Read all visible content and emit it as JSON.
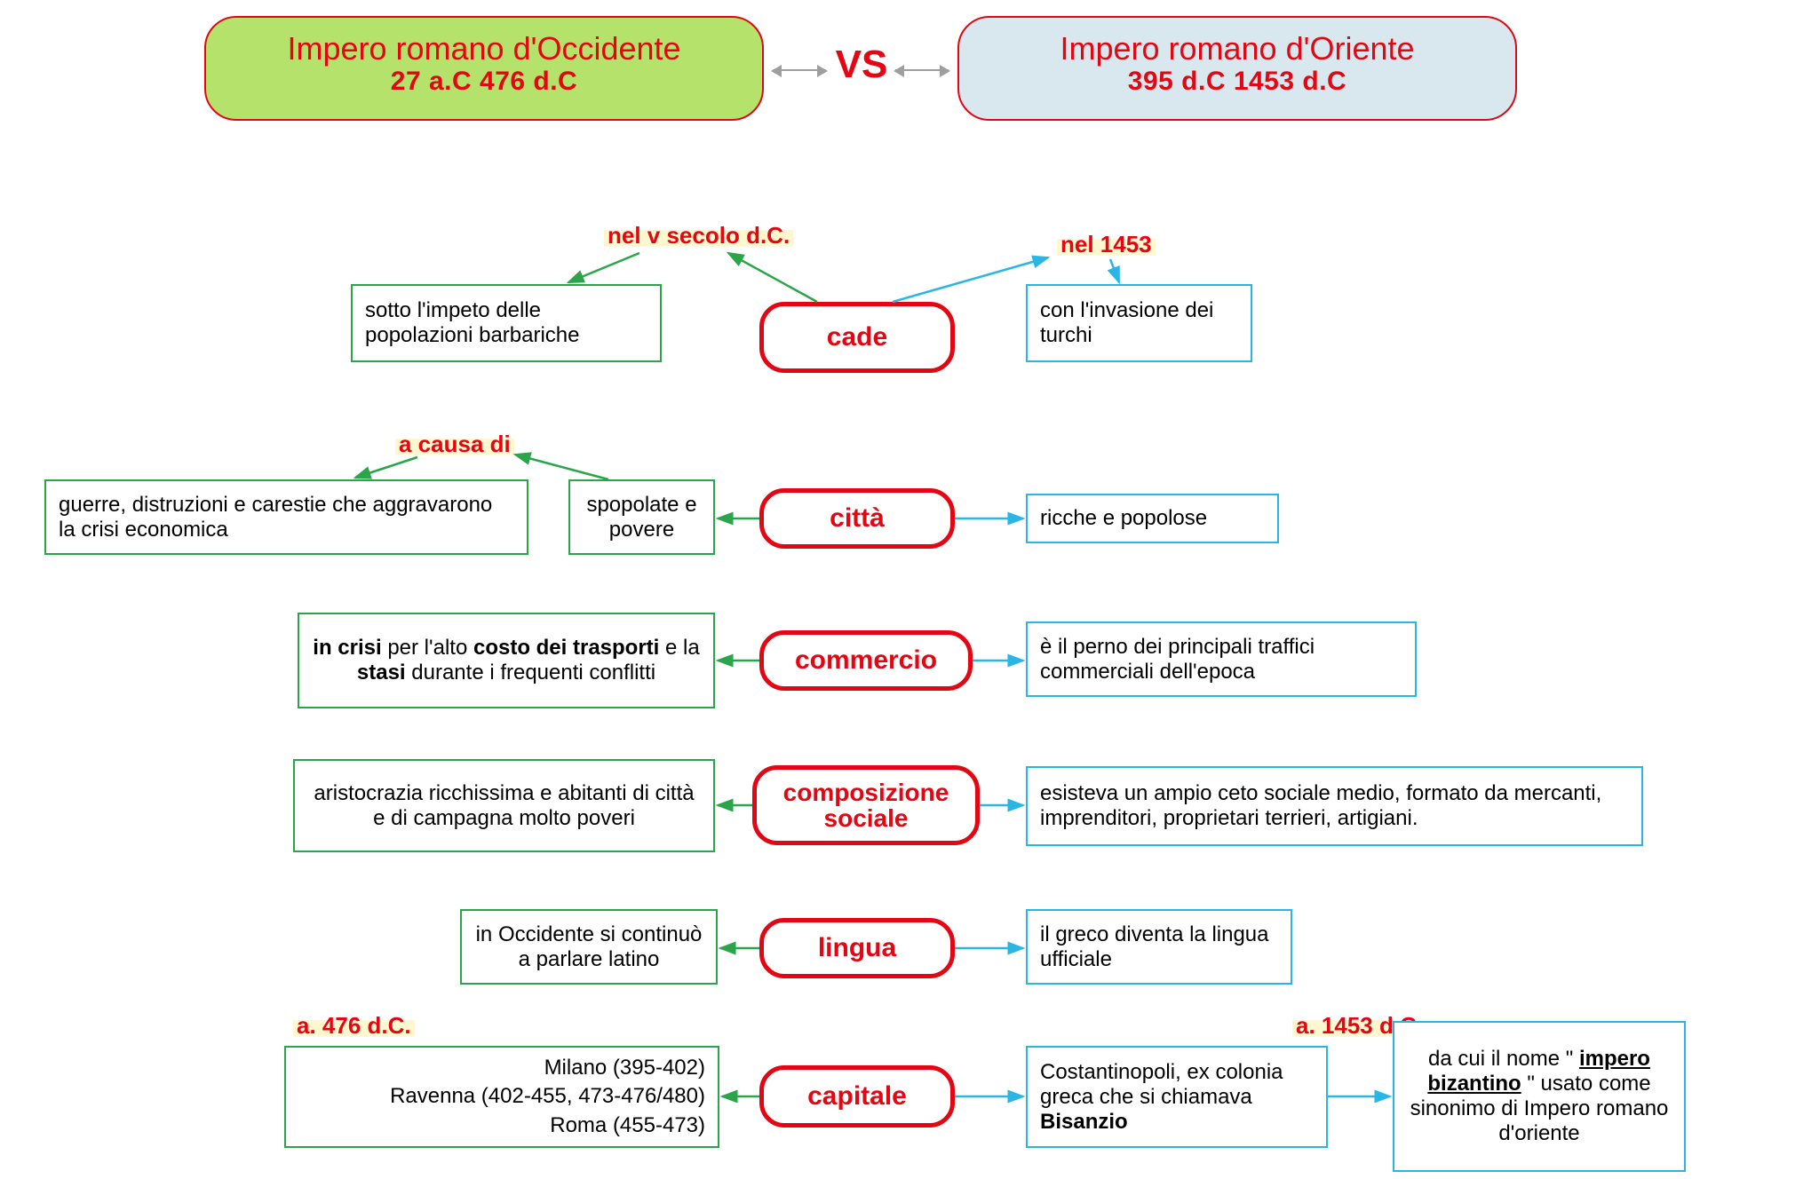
{
  "colors": {
    "red": "#e30613",
    "green_border": "#2aa54a",
    "cyan_border": "#29b6e5",
    "green_arrow": "#2aa54a",
    "cyan_arrow": "#29b6e5",
    "hdr_left_bg": "#b5e26a",
    "hdr_right_bg": "#d9e8ee",
    "gray_arrow": "#9e9e9e",
    "highlight_bg": "#fff8cf"
  },
  "header": {
    "left": {
      "title": "Impero romano d'Occidente",
      "dates": "27 a.C 476 d.C"
    },
    "vs": "VS",
    "right": {
      "title": "Impero romano d'Oriente",
      "dates": "395 d.C 1453 d.C"
    }
  },
  "labels": {
    "nel_v_secolo": "nel v secolo d.C.",
    "nel_1453": "nel 1453",
    "a_causa_di": "a causa di",
    "a476": "a. 476 d.C.",
    "a1453": "a. 1453 d.C."
  },
  "topics": {
    "cade": "cade",
    "citta": "città",
    "commercio": "commercio",
    "composizione": "composizione sociale",
    "lingua": "lingua",
    "capitale": "capitale"
  },
  "west": {
    "cade": "sotto l'impeto delle popolazioni barbariche",
    "citta": "spopolate e povere",
    "citta_cause": "guerre, distruzioni e carestie che aggravarono la crisi economica",
    "commercio_html": "<b>in crisi</b> per l'alto <b>costo dei trasporti</b> e la <b>stasi</b> durante i frequenti conflitti",
    "composizione": "aristocrazia ricchissima e abitanti di città e di campagna molto poveri",
    "lingua": "in Occidente si continuò a parlare latino",
    "capitale": "Milano (395-402)\nRavenna (402-455, 473-476/480)\nRoma (455-473)"
  },
  "east": {
    "cade": "con l'invasione dei turchi",
    "citta": "ricche e popolose",
    "commercio": "è il perno dei principali traffici commerciali dell'epoca",
    "composizione": "esisteva un ampio ceto sociale medio, formato da mercanti, imprenditori, proprietari terrieri, artigiani.",
    "lingua": "il greco diventa la lingua ufficiale",
    "capitale_html": "Costantinopoli, ex colonia greca che si chiamava <b>Bisanzio</b>",
    "capitale_note_html": "da cui il nome \" <b><u>impero bizantino</u></b> \" usato come sinonimo di Impero romano d'oriente"
  }
}
